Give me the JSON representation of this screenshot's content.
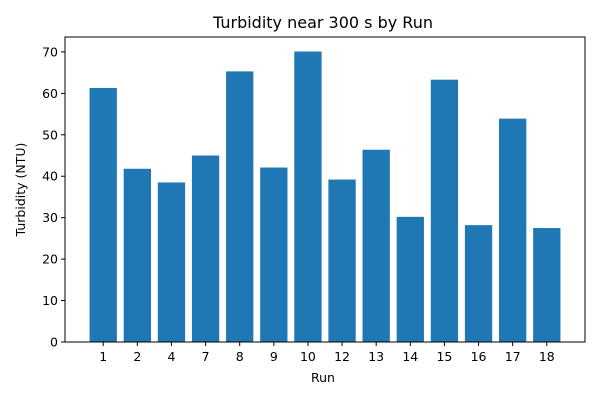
{
  "chart_data": {
    "type": "bar",
    "title": "Turbidity near 300 s by Run",
    "xlabel": "Run",
    "ylabel": "Turbidity (NTU)",
    "categories": [
      "1",
      "2",
      "4",
      "7",
      "8",
      "9",
      "10",
      "12",
      "13",
      "14",
      "15",
      "16",
      "17",
      "18"
    ],
    "values": [
      61.3,
      41.8,
      38.5,
      45.0,
      65.3,
      42.1,
      70.1,
      39.2,
      46.4,
      30.2,
      63.3,
      28.2,
      53.9,
      27.5
    ],
    "ylim": [
      0,
      73.6
    ],
    "yticks": [
      0,
      10,
      20,
      30,
      40,
      50,
      60,
      70
    ],
    "grid": false,
    "color": "#1f77b4"
  }
}
